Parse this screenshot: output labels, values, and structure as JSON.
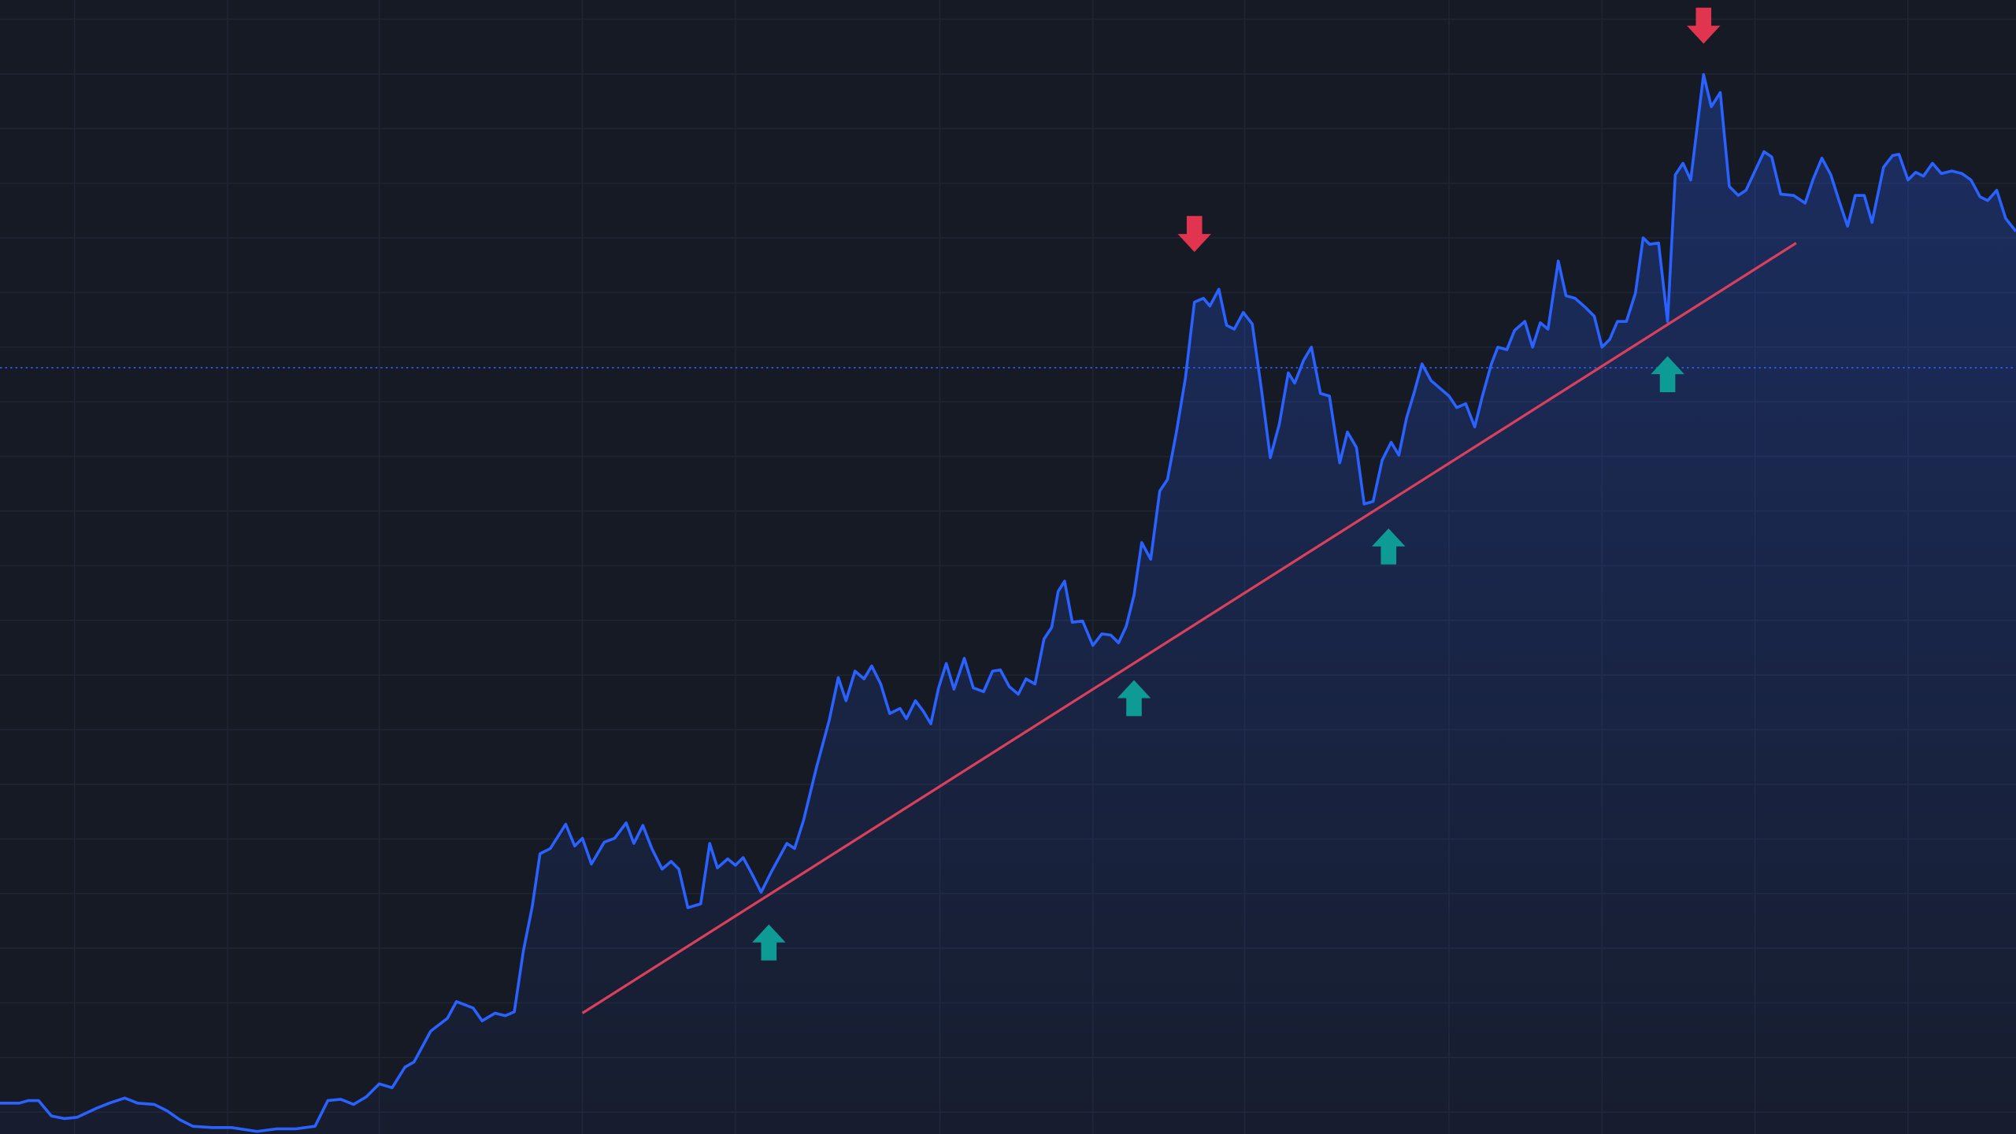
{
  "chart_data": {
    "type": "line",
    "xlim": [
      0,
      1568
    ],
    "ylim": [
      0,
      882
    ],
    "xticks": [
      58,
      177,
      295,
      453,
      572,
      731,
      850,
      968,
      1127,
      1246,
      1365,
      1484
    ],
    "yticks": [
      17,
      59.5,
      102,
      144.5,
      187,
      229.5,
      272,
      314.5,
      357,
      399.5,
      442,
      484.5,
      527,
      569.5,
      612,
      654.5,
      697,
      739.5,
      782,
      824.5,
      867
    ],
    "grid": true,
    "series": [
      {
        "color": "#2962ff",
        "x": [
          0,
          15,
          22,
          30,
          40,
          50,
          60,
          75,
          85,
          97,
          107,
          120,
          130,
          140,
          150,
          165,
          180,
          200,
          215,
          230,
          245,
          255,
          265,
          275,
          285,
          295,
          305,
          315,
          322,
          335,
          348,
          355,
          368,
          375,
          385,
          393,
          400,
          407,
          414,
          420,
          428,
          440,
          447,
          453,
          460,
          470,
          478,
          487,
          493,
          500,
          507,
          515,
          522,
          528,
          535,
          545,
          552,
          558,
          566,
          572,
          578,
          585,
          592,
          600,
          612,
          618,
          625,
          635,
          645,
          652,
          658,
          665,
          672,
          678,
          685,
          692,
          700,
          705,
          712,
          718,
          724,
          730,
          736,
          742,
          750,
          757,
          765,
          772,
          778,
          785,
          792,
          798,
          805,
          812,
          818,
          823,
          828,
          834,
          842,
          850,
          857,
          864,
          870,
          876,
          882,
          888,
          895,
          902,
          908,
          915,
          922,
          929,
          936,
          941,
          948,
          954,
          960,
          967,
          974,
          981,
          988,
          995,
          1002,
          1007,
          1014,
          1020,
          1027,
          1034,
          1042,
          1048,
          1055,
          1061,
          1068,
          1075,
          1082,
          1088,
          1094,
          1100,
          1106,
          1113,
          1120,
          1127,
          1133,
          1140,
          1147,
          1153,
          1160,
          1165,
          1172,
          1178,
          1186,
          1192,
          1198,
          1204,
          1212,
          1218,
          1225,
          1233,
          1240,
          1246,
          1252,
          1258,
          1265,
          1272,
          1278,
          1283,
          1290,
          1297,
          1303,
          1309,
          1315,
          1325,
          1331,
          1338,
          1345,
          1352,
          1358,
          1372,
          1378,
          1385,
          1395,
          1404,
          1410,
          1417,
          1424,
          1430,
          1437,
          1443,
          1450,
          1456,
          1465,
          1472,
          1477,
          1484,
          1490,
          1496,
          1503,
          1510,
          1518,
          1526,
          1533,
          1540,
          1546,
          1553,
          1560,
          1568
        ],
        "values": [
          24,
          24,
          26,
          26,
          14,
          12,
          13,
          20,
          24,
          28,
          24,
          23,
          18,
          11,
          6,
          5,
          5,
          2,
          4,
          4,
          6,
          26,
          27,
          23,
          29,
          39,
          36,
          52,
          56,
          80,
          90,
          103,
          98,
          88,
          94,
          92,
          95,
          142,
          177,
          218,
          222,
          241,
          224,
          230,
          210,
          227,
          230,
          242,
          226,
          240,
          222,
          206,
          212,
          206,
          176,
          179,
          226,
          207,
          214,
          209,
          215,
          202,
          188,
          204,
          226,
          222,
          244,
          285,
          322,
          355,
          337,
          360,
          354,
          364,
          350,
          327,
          331,
          323,
          337,
          329,
          319,
          347,
          366,
          346,
          370,
          347,
          344,
          360,
          361,
          348,
          342,
          354,
          350,
          385,
          394,
          422,
          430,
          398,
          399,
          380,
          389,
          388,
          382,
          395,
          419,
          460,
          447,
          500,
          509,
          546,
          588,
          647,
          650,
          644,
          657,
          629,
          626,
          639,
          630,
          580,
          526,
          552,
          592,
          584,
          602,
          612,
          576,
          574,
          522,
          546,
          534,
          490,
          492,
          524,
          538,
          528,
          557,
          577,
          599,
          586,
          580,
          574,
          565,
          568,
          550,
          574,
          599,
          612,
          610,
          625,
          632,
          612,
          631,
          626,
          679,
          652,
          650,
          643,
          636,
          612,
          618,
          632,
          632,
          654,
          697,
          692,
          693,
          632,
          746,
          755,
          742,
          824,
          799,
          810,
          737,
          730,
          734,
          764,
          760,
          731,
          730,
          724,
          742,
          759,
          746,
          727,
          706,
          730,
          730,
          709,
          752,
          761,
          762,
          742,
          748,
          745,
          755,
          747,
          749,
          747,
          742,
          729,
          726,
          734,
          712,
          702
        ]
      }
    ],
    "reference_line": 596,
    "trendline": {
      "x": [
        453,
        1397
      ],
      "y": [
        94,
        693
      ],
      "color": "#d9405c"
    },
    "up_arrows": {
      "x": [
        598,
        882,
        1080,
        1297
      ],
      "y": [
        149,
        339,
        457,
        591
      ],
      "color": "#0f9b95"
    },
    "down_arrows": {
      "x": [
        929,
        1325
      ],
      "y": [
        700,
        862
      ],
      "color": "#e0344f"
    }
  }
}
